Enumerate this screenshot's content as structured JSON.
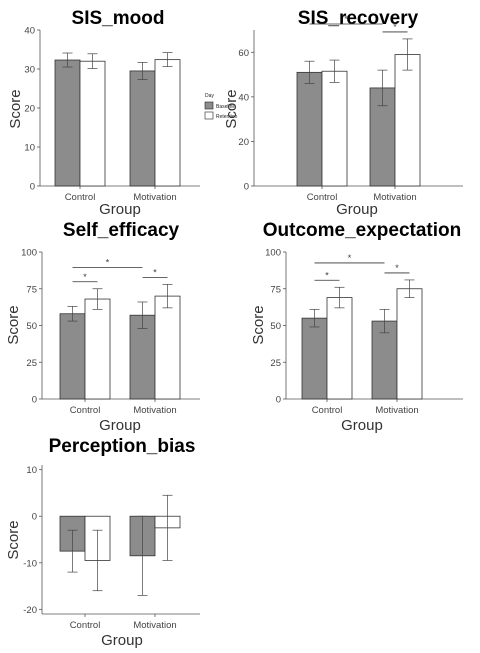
{
  "figure": {
    "legend_title": "Day",
    "legend_items": [
      {
        "label": "Baseline",
        "color": "#8c8c8c"
      },
      {
        "label": "Retention",
        "color": "#ffffff"
      }
    ],
    "legend_placement": "right of SIS_mood panel"
  },
  "chart_data": [
    {
      "type": "bar",
      "title": "SIS_mood",
      "xlabel": "Group",
      "ylabel": "Score",
      "categories": [
        "Control",
        "Motivation"
      ],
      "ylim": [
        0,
        40
      ],
      "yticks": [
        0,
        10,
        20,
        30,
        40
      ],
      "grid": false,
      "series": [
        {
          "name": "Baseline",
          "color": "#8c8c8c",
          "values": [
            32.3,
            29.5
          ],
          "errors": [
            1.8,
            2.2
          ]
        },
        {
          "name": "Retention",
          "color": "#ffffff",
          "values": [
            32.0,
            32.4
          ],
          "errors": [
            1.9,
            1.8
          ]
        }
      ],
      "significance": []
    },
    {
      "type": "bar",
      "title": "SIS_recovery",
      "xlabel": "Group",
      "ylabel": "Score",
      "categories": [
        "Control",
        "Motivation"
      ],
      "ylim": [
        0,
        70
      ],
      "yticks": [
        0,
        20,
        40,
        60
      ],
      "grid": false,
      "series": [
        {
          "name": "Baseline",
          "color": "#8c8c8c",
          "values": [
            51,
            44
          ],
          "errors": [
            5,
            8
          ]
        },
        {
          "name": "Retention",
          "color": "#ffffff",
          "values": [
            51.5,
            59
          ],
          "errors": [
            5,
            7
          ]
        }
      ],
      "significance": [
        {
          "from": [
            0,
            0
          ],
          "to": [
            1,
            0
          ],
          "label": "*",
          "level": 1
        },
        {
          "from": [
            1,
            0
          ],
          "to": [
            1,
            1
          ],
          "label": "*",
          "level": 0
        }
      ]
    },
    {
      "type": "bar",
      "title": "Self_efficacy",
      "xlabel": "Group",
      "ylabel": "Score",
      "categories": [
        "Control",
        "Motivation"
      ],
      "ylim": [
        0,
        100
      ],
      "yticks": [
        0,
        25,
        50,
        75,
        100
      ],
      "grid": false,
      "series": [
        {
          "name": "Baseline",
          "color": "#8c8c8c",
          "values": [
            58,
            57
          ],
          "errors": [
            5,
            9
          ]
        },
        {
          "name": "Retention",
          "color": "#ffffff",
          "values": [
            68,
            70
          ],
          "errors": [
            7,
            8
          ]
        }
      ],
      "significance": [
        {
          "from": [
            0,
            0
          ],
          "to": [
            0,
            1
          ],
          "label": "*",
          "level": 0
        },
        {
          "from": [
            1,
            0
          ],
          "to": [
            1,
            1
          ],
          "label": "*",
          "level": 0
        },
        {
          "from": [
            0,
            0
          ],
          "to": [
            1,
            0
          ],
          "label": "*",
          "level": 1
        }
      ]
    },
    {
      "type": "bar",
      "title": "Outcome_expectation",
      "xlabel": "Group",
      "ylabel": "Score",
      "categories": [
        "Control",
        "Motivation"
      ],
      "ylim": [
        0,
        100
      ],
      "yticks": [
        0,
        25,
        50,
        75,
        100
      ],
      "grid": false,
      "series": [
        {
          "name": "Baseline",
          "color": "#8c8c8c",
          "values": [
            55,
            53
          ],
          "errors": [
            6,
            8
          ]
        },
        {
          "name": "Retention",
          "color": "#ffffff",
          "values": [
            69,
            75
          ],
          "errors": [
            7,
            6
          ]
        }
      ],
      "significance": [
        {
          "from": [
            0,
            0
          ],
          "to": [
            0,
            1
          ],
          "label": "*",
          "level": 0
        },
        {
          "from": [
            1,
            0
          ],
          "to": [
            1,
            1
          ],
          "label": "*",
          "level": 0
        },
        {
          "from": [
            0,
            0
          ],
          "to": [
            1,
            0
          ],
          "label": "*",
          "level": 1
        }
      ]
    },
    {
      "type": "bar",
      "title": "Perception_bias",
      "xlabel": "Group",
      "ylabel": "Score",
      "categories": [
        "Control",
        "Motivation"
      ],
      "ylim": [
        -21,
        11
      ],
      "yticks": [
        -20,
        -10,
        0,
        10
      ],
      "grid": false,
      "series": [
        {
          "name": "Baseline",
          "color": "#8c8c8c",
          "values": [
            -7.5,
            -8.5
          ],
          "errors": [
            4.5,
            8.5
          ]
        },
        {
          "name": "Retention",
          "color": "#ffffff",
          "values": [
            -9.5,
            -2.5
          ],
          "errors": [
            6.5,
            7
          ]
        }
      ],
      "significance": []
    }
  ]
}
